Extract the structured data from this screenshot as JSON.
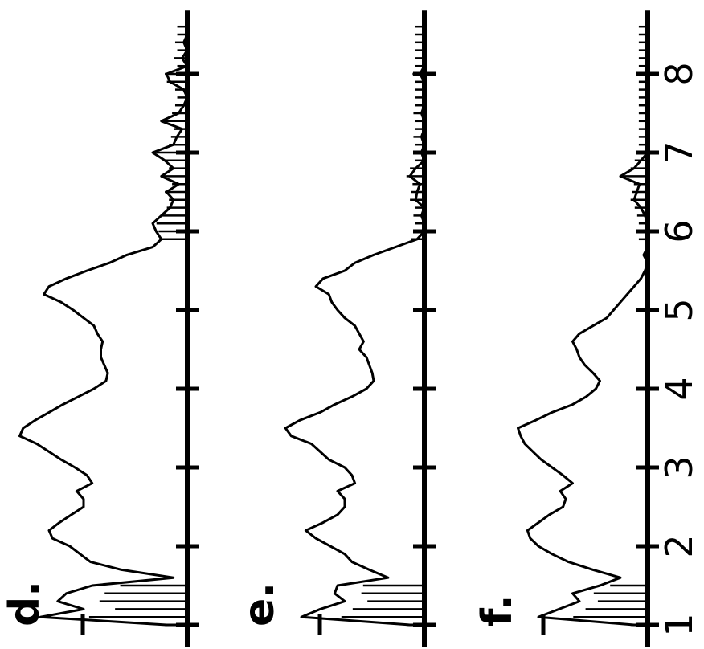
{
  "chart_data": {
    "type": "line",
    "orientation": "rotated-90-ccw",
    "x_axis": {
      "ticks": [
        "1",
        "2",
        "3",
        "4",
        "5",
        "6",
        "7",
        "8"
      ],
      "xlim": [
        1,
        8.6
      ]
    },
    "grid": false,
    "line_color": "#000000",
    "panels": [
      {
        "label": "d.",
        "x": [
          1.0,
          1.1,
          1.2,
          1.3,
          1.4,
          1.5,
          1.6,
          1.7,
          1.8,
          1.9,
          2.0,
          2.1,
          2.2,
          2.3,
          2.4,
          2.5,
          2.6,
          2.7,
          2.8,
          2.9,
          3.0,
          3.1,
          3.2,
          3.3,
          3.4,
          3.5,
          3.6,
          3.7,
          3.8,
          3.9,
          4.0,
          4.1,
          4.2,
          4.3,
          4.4,
          4.5,
          4.6,
          4.7,
          4.8,
          4.9,
          5.0,
          5.1,
          5.2,
          5.3,
          5.4,
          5.5,
          5.6,
          5.7,
          5.8,
          5.9,
          6.0,
          6.1,
          6.2,
          6.3,
          6.4,
          6.5,
          6.6,
          6.7,
          6.8,
          6.9,
          7.0,
          7.1,
          7.2,
          7.3,
          7.4,
          7.5,
          7.6,
          7.7,
          7.8,
          7.9,
          8.0,
          8.1,
          8.2,
          8.3,
          8.4,
          8.5,
          8.6
        ],
        "y": [
          0.12,
          0.85,
          0.6,
          0.75,
          0.7,
          0.55,
          0.08,
          0.38,
          0.56,
          0.62,
          0.68,
          0.78,
          0.8,
          0.74,
          0.67,
          0.6,
          0.6,
          0.64,
          0.55,
          0.58,
          0.65,
          0.73,
          0.8,
          0.87,
          0.97,
          0.95,
          0.88,
          0.8,
          0.72,
          0.63,
          0.54,
          0.47,
          0.46,
          0.48,
          0.5,
          0.5,
          0.49,
          0.52,
          0.54,
          0.6,
          0.66,
          0.73,
          0.83,
          0.8,
          0.7,
          0.58,
          0.45,
          0.35,
          0.2,
          0.15,
          0.18,
          0.2,
          0.15,
          0.1,
          0.08,
          0.12,
          0.05,
          0.15,
          0.08,
          0.13,
          0.2,
          0.08,
          0.06,
          0.03,
          0.15,
          0.05,
          0.02,
          0.0,
          0.02,
          0.1,
          0.12,
          0.0,
          0.03,
          0.0,
          0.02,
          0.0,
          0.0
        ]
      },
      {
        "label": "e.",
        "x": [
          1.0,
          1.1,
          1.2,
          1.3,
          1.4,
          1.5,
          1.6,
          1.7,
          1.8,
          1.9,
          2.0,
          2.1,
          2.2,
          2.3,
          2.4,
          2.5,
          2.6,
          2.7,
          2.8,
          2.9,
          3.0,
          3.1,
          3.2,
          3.3,
          3.4,
          3.5,
          3.6,
          3.7,
          3.8,
          3.9,
          4.0,
          4.1,
          4.2,
          4.3,
          4.4,
          4.5,
          4.6,
          4.7,
          4.8,
          4.9,
          5.0,
          5.1,
          5.2,
          5.3,
          5.4,
          5.5,
          5.6,
          5.7,
          5.8,
          5.9,
          6.0,
          6.1,
          6.2,
          6.3,
          6.4,
          6.5,
          6.6,
          6.7,
          6.8,
          6.9,
          7.0,
          7.1,
          7.2,
          7.3,
          7.4,
          7.5,
          7.6,
          7.7,
          7.8,
          7.9,
          8.0,
          8.1,
          8.2,
          8.3,
          8.4,
          8.5,
          8.6
        ],
        "y": [
          0.1,
          0.85,
          0.72,
          0.55,
          0.62,
          0.6,
          0.25,
          0.38,
          0.5,
          0.55,
          0.65,
          0.75,
          0.82,
          0.7,
          0.6,
          0.55,
          0.55,
          0.6,
          0.48,
          0.5,
          0.55,
          0.66,
          0.72,
          0.78,
          0.92,
          0.96,
          0.86,
          0.72,
          0.62,
          0.5,
          0.4,
          0.35,
          0.36,
          0.38,
          0.4,
          0.45,
          0.42,
          0.45,
          0.48,
          0.55,
          0.6,
          0.64,
          0.66,
          0.75,
          0.7,
          0.55,
          0.48,
          0.35,
          0.2,
          0.05,
          0.0,
          0.0,
          0.02,
          0.0,
          0.06,
          0.05,
          0.03,
          0.1,
          0.06,
          0.0,
          0.02,
          0.0,
          0.02,
          0.0,
          0.0,
          0.02,
          0.0,
          0.0,
          0.0,
          0.0,
          0.03,
          0.0,
          0.0,
          0.0,
          0.0,
          0.0,
          0.0
        ]
      },
      {
        "label": "f.",
        "x": [
          1.0,
          1.1,
          1.2,
          1.3,
          1.4,
          1.5,
          1.6,
          1.7,
          1.8,
          1.9,
          2.0,
          2.1,
          2.2,
          2.3,
          2.4,
          2.5,
          2.6,
          2.7,
          2.8,
          2.9,
          3.0,
          3.1,
          3.2,
          3.3,
          3.4,
          3.5,
          3.6,
          3.7,
          3.8,
          3.9,
          4.0,
          4.1,
          4.2,
          4.3,
          4.4,
          4.5,
          4.6,
          4.7,
          4.8,
          4.9,
          5.0,
          5.1,
          5.2,
          5.3,
          5.4,
          5.5,
          5.6,
          5.7,
          5.8,
          5.9,
          6.0,
          6.1,
          6.2,
          6.3,
          6.4,
          6.5,
          6.6,
          6.7,
          6.8,
          6.9,
          7.0,
          7.1,
          7.2,
          7.3,
          7.4,
          7.5,
          7.6,
          7.7,
          7.8,
          7.9,
          8.0,
          8.1,
          8.2,
          8.3,
          8.4,
          8.5,
          8.6
        ],
        "y": [
          0.1,
          0.8,
          0.65,
          0.5,
          0.55,
          0.35,
          0.2,
          0.4,
          0.58,
          0.7,
          0.8,
          0.86,
          0.88,
          0.8,
          0.72,
          0.62,
          0.6,
          0.64,
          0.55,
          0.62,
          0.7,
          0.78,
          0.84,
          0.9,
          0.93,
          0.95,
          0.82,
          0.7,
          0.55,
          0.45,
          0.38,
          0.35,
          0.4,
          0.46,
          0.5,
          0.52,
          0.55,
          0.5,
          0.4,
          0.3,
          0.25,
          0.2,
          0.15,
          0.1,
          0.05,
          0.02,
          0.0,
          0.03,
          0.0,
          0.0,
          0.0,
          0.0,
          0.02,
          0.05,
          0.1,
          0.08,
          0.06,
          0.2,
          0.1,
          0.05,
          0.0,
          0.0,
          0.0,
          0.0,
          0.0,
          0.0,
          0.0,
          0.0,
          0.0,
          0.0,
          0.0,
          0.0,
          0.0,
          0.0,
          0.0,
          0.0,
          0.0
        ]
      }
    ]
  }
}
